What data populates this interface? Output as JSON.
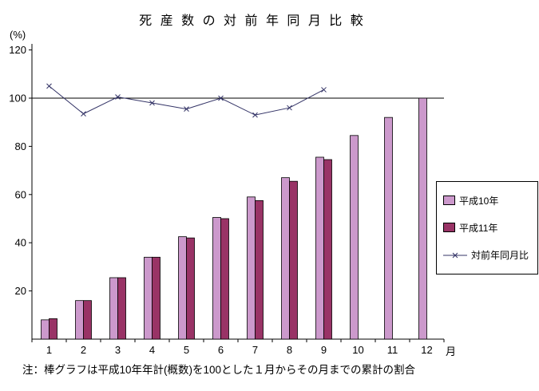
{
  "title_display": "死 産 数 の 対 前 年 同 月 比 較",
  "note": "注：棒グラフは平成10年年計(概数)を100とした１月からその月までの累計の割合",
  "chart_data": {
    "type": "bar+line",
    "title": "死産数の対前年同月比較",
    "ylabel": "(%)",
    "xlabel": "月",
    "categories": [
      "1",
      "2",
      "3",
      "4",
      "5",
      "6",
      "7",
      "8",
      "9",
      "10",
      "11",
      "12"
    ],
    "series": [
      {
        "name": "平成10年",
        "type": "bar",
        "color": "#cc99cc",
        "values": [
          8,
          16,
          25.5,
          34,
          42.5,
          50.5,
          59,
          67,
          75.5,
          84.5,
          92,
          100
        ]
      },
      {
        "name": "平成11年",
        "type": "bar",
        "color": "#993366",
        "values": [
          8.5,
          16,
          25.5,
          34,
          42,
          50,
          57.5,
          65.5,
          74.5,
          null,
          null,
          null
        ]
      },
      {
        "name": "対前年同月比",
        "type": "line",
        "color": "#333366",
        "marker": "x",
        "values": [
          105,
          93.5,
          100.5,
          98,
          95.5,
          100,
          93,
          96,
          103.5,
          null,
          null,
          null
        ]
      }
    ],
    "ylim": [
      0,
      125
    ],
    "yticks": [
      20,
      40,
      60,
      80,
      100,
      120
    ],
    "reference_line": 100,
    "grid": false,
    "legend_position": "right"
  }
}
